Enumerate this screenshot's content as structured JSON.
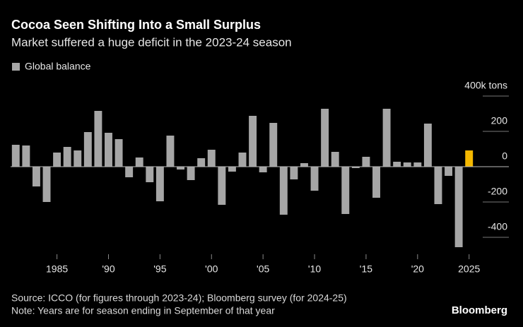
{
  "chart_data": {
    "type": "bar",
    "title": "Cocoa Seen Shifting Into a Small Surplus",
    "subtitle": "Market suffered a huge deficit in the 2023-24 season",
    "source": "Source: ICCO (for figures through 2023-24); Bloomberg survey (for 2024-25)",
    "note": "Note: Years are for season ending in September of that year",
    "brand": "Bloomberg",
    "x": [
      1981,
      1982,
      1983,
      1984,
      1985,
      1986,
      1987,
      1988,
      1989,
      1990,
      1991,
      1992,
      1993,
      1994,
      1995,
      1996,
      1997,
      1998,
      1999,
      2000,
      2001,
      2002,
      2003,
      2004,
      2005,
      2006,
      2007,
      2008,
      2009,
      2010,
      2011,
      2012,
      2013,
      2014,
      2015,
      2016,
      2017,
      2018,
      2019,
      2020,
      2021,
      2022,
      2023,
      2024,
      2025
    ],
    "series": [
      {
        "name": "Global balance",
        "color": "#a6a6a6",
        "values": [
          124,
          120,
          -112,
          -200,
          80,
          112,
          92,
          196,
          316,
          192,
          156,
          -60,
          52,
          -88,
          -196,
          176,
          -16,
          -76,
          48,
          96,
          -216,
          -28,
          80,
          288,
          -32,
          248,
          -272,
          -72,
          20,
          -136,
          328,
          84,
          -268,
          -8,
          56,
          -176,
          328,
          28,
          24,
          24,
          244,
          -212,
          -52,
          -456,
          92
        ],
        "colors": [
          "#a6a6a6",
          "#a6a6a6",
          "#a6a6a6",
          "#a6a6a6",
          "#a6a6a6",
          "#a6a6a6",
          "#a6a6a6",
          "#a6a6a6",
          "#a6a6a6",
          "#a6a6a6",
          "#a6a6a6",
          "#a6a6a6",
          "#a6a6a6",
          "#a6a6a6",
          "#a6a6a6",
          "#a6a6a6",
          "#a6a6a6",
          "#a6a6a6",
          "#a6a6a6",
          "#a6a6a6",
          "#a6a6a6",
          "#a6a6a6",
          "#a6a6a6",
          "#a6a6a6",
          "#a6a6a6",
          "#a6a6a6",
          "#a6a6a6",
          "#a6a6a6",
          "#a6a6a6",
          "#a6a6a6",
          "#a6a6a6",
          "#a6a6a6",
          "#a6a6a6",
          "#a6a6a6",
          "#a6a6a6",
          "#a6a6a6",
          "#a6a6a6",
          "#a6a6a6",
          "#a6a6a6",
          "#a6a6a6",
          "#a6a6a6",
          "#a6a6a6",
          "#a6a6a6",
          "#a6a6a6",
          "#f5b800"
        ]
      }
    ],
    "xlim": [
      1980.5,
      2025.5
    ],
    "xticks": [
      {
        "value": 1985,
        "label": "1985"
      },
      {
        "value": 1990,
        "label": "'90"
      },
      {
        "value": 1995,
        "label": "'95"
      },
      {
        "value": 2000,
        "label": "'00"
      },
      {
        "value": 2005,
        "label": "'05"
      },
      {
        "value": 2010,
        "label": "'10"
      },
      {
        "value": 2015,
        "label": "'15"
      },
      {
        "value": 2020,
        "label": "'20"
      },
      {
        "value": 2025,
        "label": "2025"
      }
    ],
    "ylim": [
      -480,
      400
    ],
    "yticks": [
      {
        "value": 400,
        "label": "400k tons"
      },
      200,
      0,
      -200,
      -400
    ]
  }
}
